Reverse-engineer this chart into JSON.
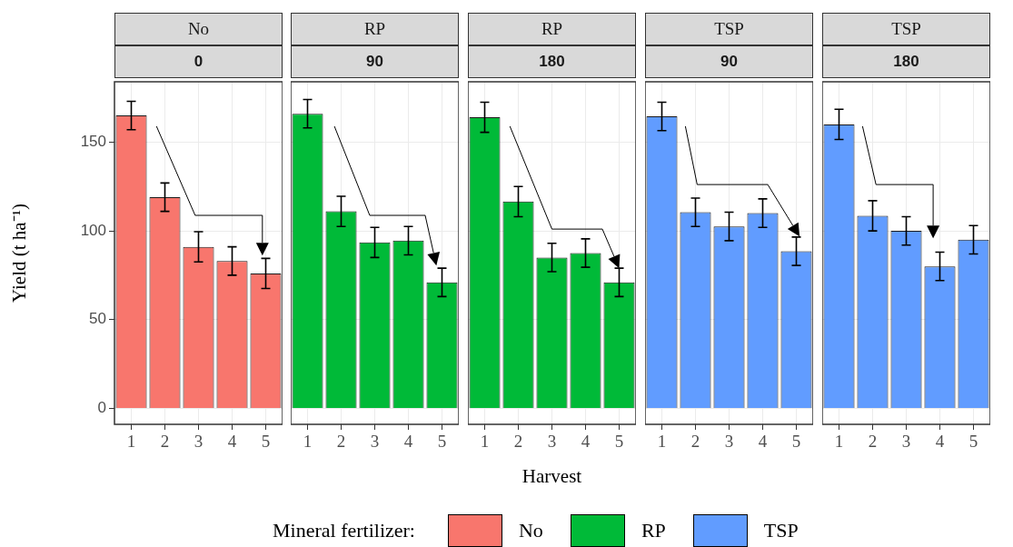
{
  "chart_data": [
    {
      "type": "bar",
      "title": "No",
      "subtitle": "0",
      "ylabel": "Yield (t ha⁻¹)",
      "categories": [
        "1",
        "2",
        "3",
        "4",
        "5"
      ],
      "series": [
        {
          "name": "No",
          "color": "#f8766d",
          "values": [
            165,
            119,
            91,
            83,
            76
          ],
          "errors": [
            8,
            8,
            8.5,
            8,
            8.5
          ]
        }
      ],
      "ylim": [
        -9,
        184
      ],
      "yticks": [
        0,
        50,
        100,
        150
      ],
      "grid": true,
      "legend": "bottom",
      "legend_title": "Mineral fertilizer:"
    },
    {
      "type": "bar",
      "title": "RP",
      "subtitle": "90",
      "categories": [
        "1",
        "2",
        "3",
        "4",
        "5"
      ],
      "series": [
        {
          "name": "RP",
          "color": "#00ba38",
          "values": [
            166,
            111,
            93.5,
            94.5,
            71
          ],
          "errors": [
            8,
            8.5,
            8.5,
            8,
            8
          ]
        }
      ],
      "ylim": [
        -9,
        184
      ],
      "yticks": [
        0,
        50,
        100,
        150
      ],
      "grid": true,
      "legend": "bottom",
      "tick_labels": "x"
    },
    {
      "type": "bar",
      "title": "RP",
      "subtitle": "180",
      "xlabel": "Harvest",
      "categories": [
        "1",
        "2",
        "3",
        "4",
        "5"
      ],
      "series": [
        {
          "color": "#00ba38",
          "values": [
            164,
            116.5,
            85,
            87.5,
            71
          ],
          "errors": [
            8.5,
            8.5,
            8,
            8,
            8
          ]
        }
      ],
      "ylim": [
        -9,
        184
      ],
      "yticks": [
        0,
        50,
        100,
        150
      ],
      "grid": true,
      "tick_labels": "x"
    },
    {
      "type": "bar",
      "title": "TSP",
      "subtitle": "90",
      "categories": [
        "1",
        "2",
        "3",
        "4",
        "5"
      ],
      "series": [
        {
          "name": "TSP",
          "color": "#619cff",
          "values": [
            164.5,
            110.5,
            102.5,
            110,
            88.5
          ],
          "errors": [
            8,
            8,
            8,
            8,
            8
          ]
        }
      ],
      "ylim": [
        -9,
        184
      ],
      "yticks": [
        0,
        50,
        100,
        150
      ],
      "grid": true,
      "legend": "bottom",
      "tick_labels": "x"
    },
    {
      "type": "bar",
      "title": "TSP",
      "subtitle": "180",
      "categories": [
        "1",
        "2",
        "3",
        "4",
        "5"
      ],
      "series": [
        {
          "color": "#619cff",
          "values": [
            160,
            108.5,
            100,
            80,
            95
          ],
          "errors": [
            8.5,
            8.5,
            8,
            8,
            8
          ]
        }
      ],
      "ylim": [
        -9,
        184
      ],
      "yticks": [
        0,
        50,
        100,
        150
      ],
      "grid": true,
      "tick_labels": "x"
    }
  ]
}
